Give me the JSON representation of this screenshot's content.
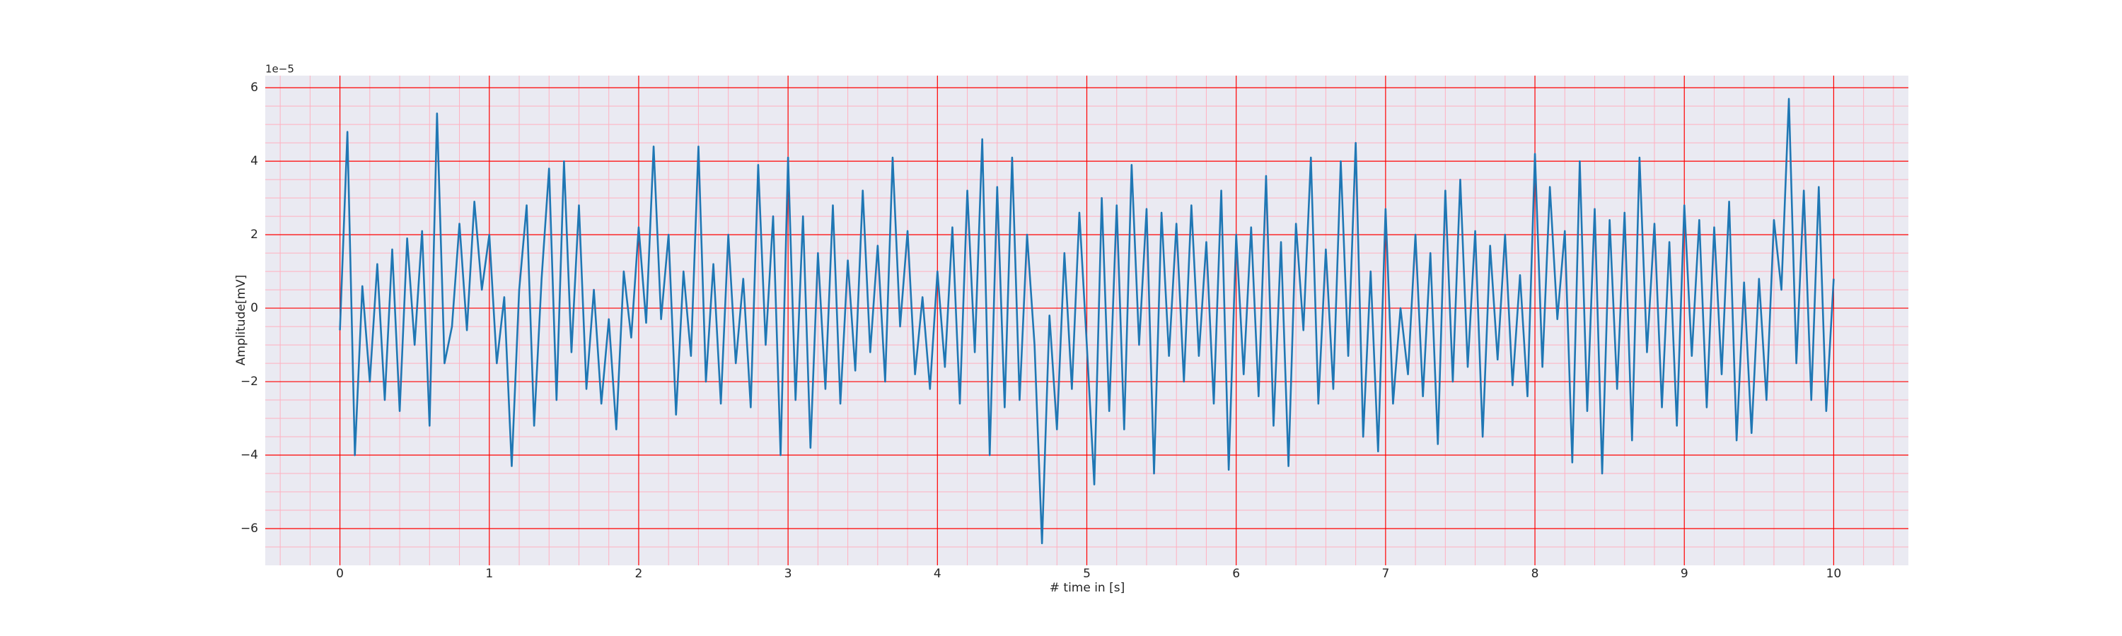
{
  "chart_data": {
    "type": "line",
    "x_label": "# time in [s]",
    "y_label": "Amplitude[mV]",
    "y_offset_label": "1e−5",
    "x": [
      0,
      0.05,
      0.1,
      0.15,
      0.2,
      0.25,
      0.3,
      0.35,
      0.4,
      0.45,
      0.5,
      0.55,
      0.6,
      0.65,
      0.7,
      0.75,
      0.8,
      0.85,
      0.9,
      0.95,
      1,
      1.05,
      1.1,
      1.15,
      1.2,
      1.25,
      1.3,
      1.35,
      1.4,
      1.45,
      1.5,
      1.55,
      1.6,
      1.65,
      1.7,
      1.75,
      1.8,
      1.85,
      1.9,
      1.95,
      2,
      2.05,
      2.1,
      2.15,
      2.2,
      2.25,
      2.3,
      2.35,
      2.4,
      2.45,
      2.5,
      2.55,
      2.6,
      2.65,
      2.7,
      2.75,
      2.8,
      2.85,
      2.9,
      2.95,
      3,
      3.05,
      3.1,
      3.15,
      3.2,
      3.25,
      3.3,
      3.35,
      3.4,
      3.45,
      3.5,
      3.55,
      3.6,
      3.65,
      3.7,
      3.75,
      3.8,
      3.85,
      3.9,
      3.95,
      4,
      4.05,
      4.1,
      4.15,
      4.2,
      4.25,
      4.3,
      4.35,
      4.4,
      4.45,
      4.5,
      4.55,
      4.6,
      4.65,
      4.7,
      4.75,
      4.8,
      4.85,
      4.9,
      4.95,
      5,
      5.05,
      5.1,
      5.15,
      5.2,
      5.25,
      5.3,
      5.35,
      5.4,
      5.45,
      5.5,
      5.55,
      5.6,
      5.65,
      5.7,
      5.75,
      5.8,
      5.85,
      5.9,
      5.95,
      6,
      6.05,
      6.1,
      6.15,
      6.2,
      6.25,
      6.3,
      6.35,
      6.4,
      6.45,
      6.5,
      6.55,
      6.6,
      6.65,
      6.7,
      6.75,
      6.8,
      6.85,
      6.9,
      6.95,
      7,
      7.05,
      7.1,
      7.15,
      7.2,
      7.25,
      7.3,
      7.35,
      7.4,
      7.45,
      7.5,
      7.55,
      7.6,
      7.65,
      7.7,
      7.75,
      7.8,
      7.85,
      7.9,
      7.95,
      8,
      8.05,
      8.1,
      8.15,
      8.2,
      8.25,
      8.3,
      8.35,
      8.4,
      8.45,
      8.5,
      8.55,
      8.6,
      8.65,
      8.7,
      8.75,
      8.8,
      8.85,
      8.9,
      8.95,
      9,
      9.05,
      9.1,
      9.15,
      9.2,
      9.25,
      9.3,
      9.35,
      9.4,
      9.45,
      9.5,
      9.55,
      9.6,
      9.65,
      9.7,
      9.75,
      9.8,
      9.85,
      9.9,
      9.95,
      10
    ],
    "series": [
      {
        "color": "#1f77b4",
        "values": [
          -0.6,
          4.8,
          -4.0,
          0.6,
          -2.0,
          1.2,
          -2.5,
          1.6,
          -2.8,
          1.9,
          -1.0,
          2.1,
          -3.2,
          5.3,
          -1.5,
          -0.5,
          2.3,
          -0.6,
          2.9,
          0.5,
          2.0,
          -1.5,
          0.3,
          -4.3,
          0.5,
          2.8,
          -3.2,
          0.8,
          3.8,
          -2.5,
          4.0,
          -1.2,
          2.8,
          -2.2,
          0.5,
          -2.6,
          -0.3,
          -3.3,
          1.0,
          -0.8,
          2.2,
          -0.4,
          4.4,
          -0.3,
          2.0,
          -2.9,
          1.0,
          -1.3,
          4.4,
          -2.0,
          1.2,
          -2.6,
          2.0,
          -1.5,
          0.8,
          -2.7,
          3.9,
          -1.0,
          2.5,
          -4.0,
          4.1,
          -2.5,
          2.5,
          -3.8,
          1.5,
          -2.2,
          2.8,
          -2.6,
          1.3,
          -1.7,
          3.2,
          -1.2,
          1.7,
          -2.0,
          4.1,
          -0.5,
          2.1,
          -1.8,
          0.3,
          -2.2,
          1.0,
          -1.6,
          2.2,
          -2.6,
          3.2,
          -1.2,
          4.6,
          -4.0,
          3.3,
          -2.7,
          4.1,
          -2.5,
          2.0,
          -1.0,
          -6.4,
          -0.2,
          -3.3,
          1.5,
          -2.2,
          2.6,
          -1.0,
          -4.8,
          3.0,
          -2.8,
          2.8,
          -3.3,
          3.9,
          -1.0,
          2.7,
          -4.5,
          2.6,
          -1.3,
          2.3,
          -2.0,
          2.8,
          -1.3,
          1.8,
          -2.6,
          3.2,
          -4.4,
          2.0,
          -1.8,
          2.2,
          -2.4,
          3.6,
          -3.2,
          1.8,
          -4.3,
          2.3,
          -0.6,
          4.1,
          -2.6,
          1.6,
          -2.2,
          4.0,
          -1.3,
          4.5,
          -3.5,
          1.0,
          -3.9,
          2.7,
          -2.6,
          0.0,
          -1.8,
          2.0,
          -2.4,
          1.5,
          -3.7,
          3.2,
          -2.0,
          3.5,
          -1.6,
          2.1,
          -3.5,
          1.7,
          -1.4,
          2.0,
          -2.1,
          0.9,
          -2.4,
          4.2,
          -1.6,
          3.3,
          -0.3,
          2.1,
          -4.2,
          4.0,
          -2.8,
          2.7,
          -4.5,
          2.4,
          -2.2,
          2.6,
          -3.6,
          4.1,
          -1.2,
          2.3,
          -2.7,
          1.8,
          -3.2,
          2.8,
          -1.3,
          2.4,
          -2.7,
          2.2,
          -1.8,
          2.9,
          -3.6,
          0.7,
          -3.4,
          0.8,
          -2.5,
          2.4,
          0.5,
          5.7,
          -1.5,
          3.2,
          -2.5,
          3.3,
          -2.8,
          0.8
        ]
      }
    ],
    "xlim": [
      -0.5,
      10.5
    ],
    "ylim": [
      -7.0,
      6.33
    ],
    "xticks": [
      0,
      1,
      2,
      3,
      4,
      5,
      6,
      7,
      8,
      9,
      10
    ],
    "yticks": [
      {
        "value": -6,
        "label": "−6"
      },
      {
        "value": -4,
        "label": "−4"
      },
      {
        "value": -2,
        "label": "−2"
      },
      0,
      2,
      4,
      6
    ],
    "xminorticks": [
      -0.4,
      -0.2,
      0.2,
      0.4,
      0.6,
      0.8,
      1.2,
      1.4,
      1.6,
      1.8,
      2.2,
      2.4,
      2.6,
      2.8,
      3.2,
      3.4,
      3.6,
      3.8,
      4.2,
      4.4,
      4.6,
      4.8,
      5.2,
      5.4,
      5.6,
      5.8,
      6.2,
      6.4,
      6.6,
      6.8,
      7.2,
      7.4,
      7.6,
      7.8,
      8.2,
      8.4,
      8.6,
      8.8,
      9.2,
      9.4,
      9.6,
      9.8,
      10.2,
      10.4
    ],
    "yminorticks": [
      -6.5,
      -5.5,
      -5,
      -4.5,
      -3.5,
      -3,
      -2.5,
      -1.5,
      -1,
      -0.5,
      0.5,
      1,
      1.5,
      2.5,
      3,
      3.5,
      4.5,
      5,
      5.5
    ],
    "grid": true,
    "grid_color": "#ff0000",
    "minor_grid_color": "#ffb0c0",
    "background": "#eaeaf2"
  }
}
